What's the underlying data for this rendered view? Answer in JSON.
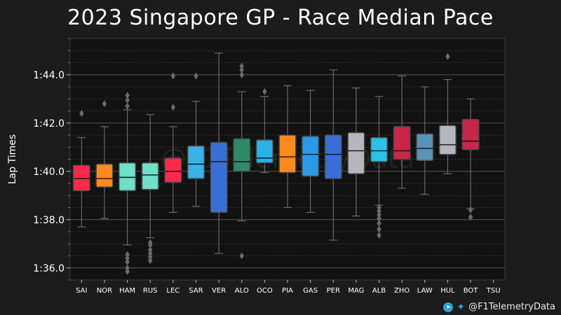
{
  "chart_data": {
    "type": "box",
    "title": "2023 Singapore GP - Race Median Pace",
    "ylabel": "Lap Times",
    "xlabel": "",
    "ylim_seconds": [
      95.5,
      105.5
    ],
    "yticks": [
      {
        "label": "1:36.0",
        "value": 96
      },
      {
        "label": "1:38.0",
        "value": 98
      },
      {
        "label": "1:40.0",
        "value": 100
      },
      {
        "label": "1:42.0",
        "value": 102
      },
      {
        "label": "1:44.0",
        "value": 104
      }
    ],
    "grid": true,
    "watermark": "@F1TelemetryData",
    "drivers": [
      {
        "name": "SAI",
        "color": "#ff2a4a",
        "whislo": 97.7,
        "q1": 99.2,
        "med": 99.7,
        "q3": 100.25,
        "whishi": 101.4,
        "fliers": [
          102.4
        ]
      },
      {
        "name": "NOR",
        "color": "#ff8a1f",
        "whislo": 98.05,
        "q1": 99.35,
        "med": 99.7,
        "q3": 100.3,
        "whishi": 101.85,
        "fliers": [
          102.8
        ]
      },
      {
        "name": "HAM",
        "color": "#6fe0c8",
        "whislo": 96.95,
        "q1": 99.2,
        "med": 99.75,
        "q3": 100.35,
        "whishi": 102.55,
        "fliers": [
          95.85,
          96.0,
          96.25,
          96.4,
          96.55,
          102.7,
          102.95,
          103.15
        ]
      },
      {
        "name": "RUS",
        "color": "#6fe0c8",
        "whislo": 97.25,
        "q1": 99.25,
        "med": 99.85,
        "q3": 100.35,
        "whishi": 102.35,
        "fliers": [
          96.3,
          96.45,
          96.6,
          96.75,
          96.95,
          97.05
        ]
      },
      {
        "name": "LEC",
        "color": "#ff2a4a",
        "whislo": 98.3,
        "q1": 99.55,
        "med": 100.0,
        "q3": 100.55,
        "whishi": 101.85,
        "fliers": [
          102.65,
          103.95
        ]
      },
      {
        "name": "SAR",
        "color": "#3ab2e8",
        "whislo": 98.55,
        "q1": 99.7,
        "med": 100.3,
        "q3": 101.05,
        "whishi": 102.9,
        "fliers": [
          103.95
        ]
      },
      {
        "name": "VER",
        "color": "#3a6fd8",
        "whislo": 96.6,
        "q1": 98.3,
        "med": 100.4,
        "q3": 101.2,
        "whishi": 104.9,
        "fliers": []
      },
      {
        "name": "ALO",
        "color": "#2e8a68",
        "whislo": 97.95,
        "q1": 100.0,
        "med": 100.4,
        "q3": 101.35,
        "whishi": 103.3,
        "fliers": [
          96.5,
          104.0,
          104.2,
          104.35
        ]
      },
      {
        "name": "OCO",
        "color": "#29b2e8",
        "whislo": 99.95,
        "q1": 100.35,
        "med": 100.55,
        "q3": 101.3,
        "whishi": 103.1,
        "fliers": [
          103.3
        ]
      },
      {
        "name": "PIA",
        "color": "#ff8a1f",
        "whislo": 98.5,
        "q1": 99.95,
        "med": 100.6,
        "q3": 101.5,
        "whishi": 103.55,
        "fliers": []
      },
      {
        "name": "GAS",
        "color": "#2a9ae8",
        "whislo": 98.3,
        "q1": 99.8,
        "med": 100.7,
        "q3": 101.45,
        "whishi": 103.35,
        "fliers": []
      },
      {
        "name": "PER",
        "color": "#3a6fd8",
        "whislo": 97.15,
        "q1": 99.7,
        "med": 100.7,
        "q3": 101.5,
        "whishi": 104.2,
        "fliers": []
      },
      {
        "name": "MAG",
        "color": "#b4b8be",
        "whislo": 98.15,
        "q1": 99.9,
        "med": 100.85,
        "q3": 101.6,
        "whishi": 103.45,
        "fliers": []
      },
      {
        "name": "ALB",
        "color": "#29c2ea",
        "whislo": 98.6,
        "q1": 100.4,
        "med": 100.85,
        "q3": 101.4,
        "whishi": 103.1,
        "fliers": [
          97.35,
          97.6,
          97.85,
          98.05,
          98.2,
          98.35,
          98.5
        ]
      },
      {
        "name": "ZHO",
        "color": "#c8264a",
        "whislo": 99.3,
        "q1": 100.5,
        "med": 100.85,
        "q3": 101.85,
        "whishi": 103.95,
        "fliers": []
      },
      {
        "name": "LAW",
        "color": "#5a93b8",
        "whislo": 99.05,
        "q1": 100.45,
        "med": 100.95,
        "q3": 101.55,
        "whishi": 103.5,
        "fliers": []
      },
      {
        "name": "HUL",
        "color": "#b4b8be",
        "whislo": 99.9,
        "q1": 100.7,
        "med": 101.1,
        "q3": 101.9,
        "whishi": 103.8,
        "fliers": [
          104.75
        ]
      },
      {
        "name": "BOT",
        "color": "#c8264a",
        "whislo": 98.45,
        "q1": 100.9,
        "med": 101.25,
        "q3": 102.15,
        "whishi": 103.0,
        "fliers": [
          98.1,
          98.4
        ]
      },
      {
        "name": "TSU",
        "color": "#3a5fa0",
        "whislo": null,
        "q1": null,
        "med": null,
        "q3": null,
        "whishi": null,
        "fliers": []
      }
    ]
  },
  "footer": {
    "handle": "@F1TelemetryData",
    "telegram_icon": "telegram-icon",
    "twitter_icon": "twitter-icon"
  }
}
